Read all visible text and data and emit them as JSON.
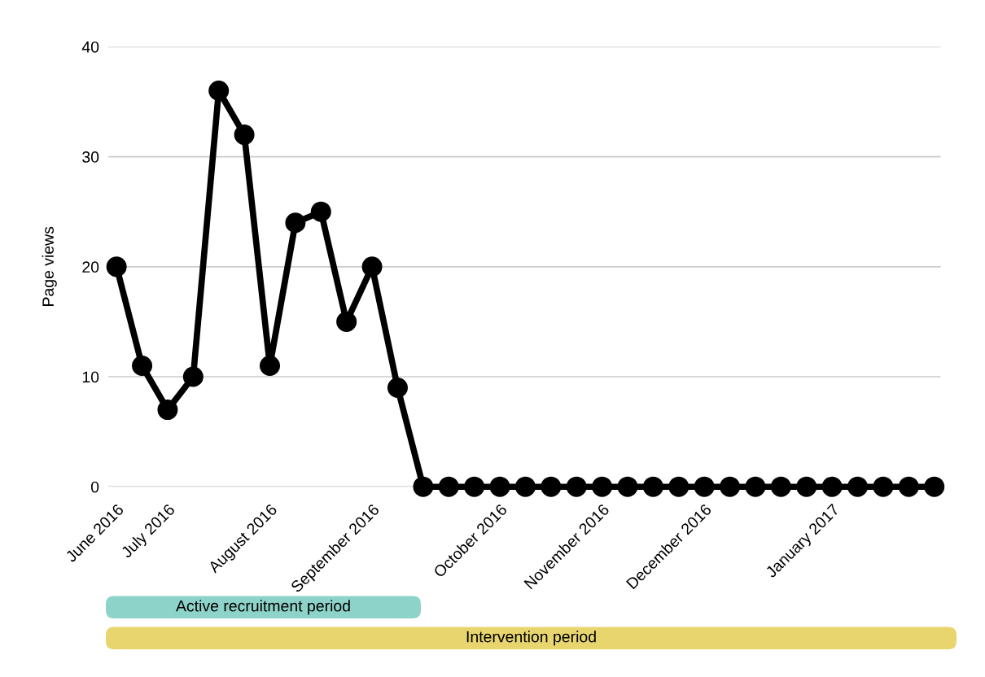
{
  "chart_data": {
    "type": "line",
    "ylabel": "Page views",
    "categories": [
      "June 2016",
      null,
      "July 2016",
      null,
      null,
      null,
      "August 2016",
      null,
      null,
      null,
      "September 2016",
      null,
      null,
      null,
      null,
      "October 2016",
      null,
      null,
      null,
      "November 2016",
      null,
      null,
      null,
      "December 2016",
      null,
      null,
      null,
      null,
      "January 2017",
      null,
      null,
      null,
      null
    ],
    "series": [
      {
        "color": "#000000",
        "values": [
          20,
          11,
          7,
          10,
          36,
          32,
          11,
          24,
          25,
          15,
          20,
          9,
          0,
          0,
          0,
          0,
          0,
          0,
          0,
          0,
          0,
          0,
          0,
          0,
          0,
          0,
          0,
          0,
          0,
          0,
          0,
          0,
          0
        ]
      }
    ],
    "ylim": [
      0,
      40
    ],
    "yticks": [
      0,
      10,
      20,
      30,
      40
    ],
    "grid": "y",
    "marker": "circle",
    "line_style": "solid",
    "legend": false,
    "annotations": [
      "Active recruitment period",
      "Intervention period"
    ]
  }
}
